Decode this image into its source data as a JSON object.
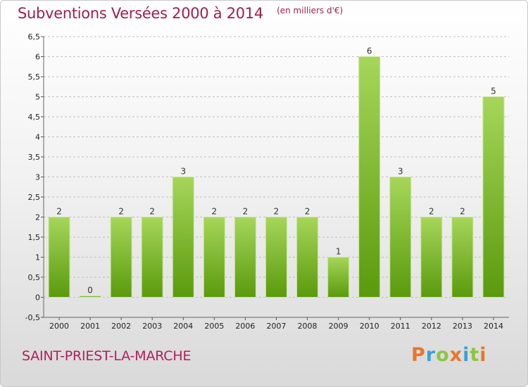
{
  "header": {
    "title": "Subventions Versées 2000 à 2014",
    "unit": "(en milliers d'€)"
  },
  "footer": {
    "place": "SAINT-PRIEST-LA-MARCHE",
    "logo_letters": [
      "P",
      "r",
      "o",
      "x",
      "i",
      "t",
      "i"
    ],
    "logo_colors": [
      "#e8762b",
      "#3aa1d8",
      "#8cc63f",
      "#e8762b",
      "#3aa1d8",
      "#8cc63f",
      "#e8762b"
    ]
  },
  "colors": {
    "bar_top": "#a6d65a",
    "bar_bottom": "#5a9a0c",
    "grid": "#bfbfbf"
  },
  "chart_data": {
    "type": "bar",
    "categories": [
      "2000",
      "2001",
      "2002",
      "2003",
      "2004",
      "2005",
      "2006",
      "2007",
      "2008",
      "2009",
      "2010",
      "2011",
      "2012",
      "2013",
      "2014"
    ],
    "values": [
      2,
      0,
      2,
      2,
      3,
      2,
      2,
      2,
      2,
      1,
      6,
      3,
      2,
      2,
      5
    ],
    "value_labels": [
      "2",
      "0",
      "2",
      "2",
      "3",
      "2",
      "2",
      "2",
      "2",
      "1",
      "6",
      "3",
      "2",
      "2",
      "5"
    ],
    "title": "Subventions Versées 2000 à 2014",
    "ylabel": "",
    "xlabel": "",
    "ylim": [
      -0.5,
      6.5
    ],
    "yticks": [
      "-0,5",
      "0",
      "0,5",
      "1",
      "1,5",
      "2",
      "2,5",
      "3",
      "3,5",
      "4",
      "4,5",
      "5",
      "5,5",
      "6",
      "6,5"
    ],
    "grid": true
  }
}
